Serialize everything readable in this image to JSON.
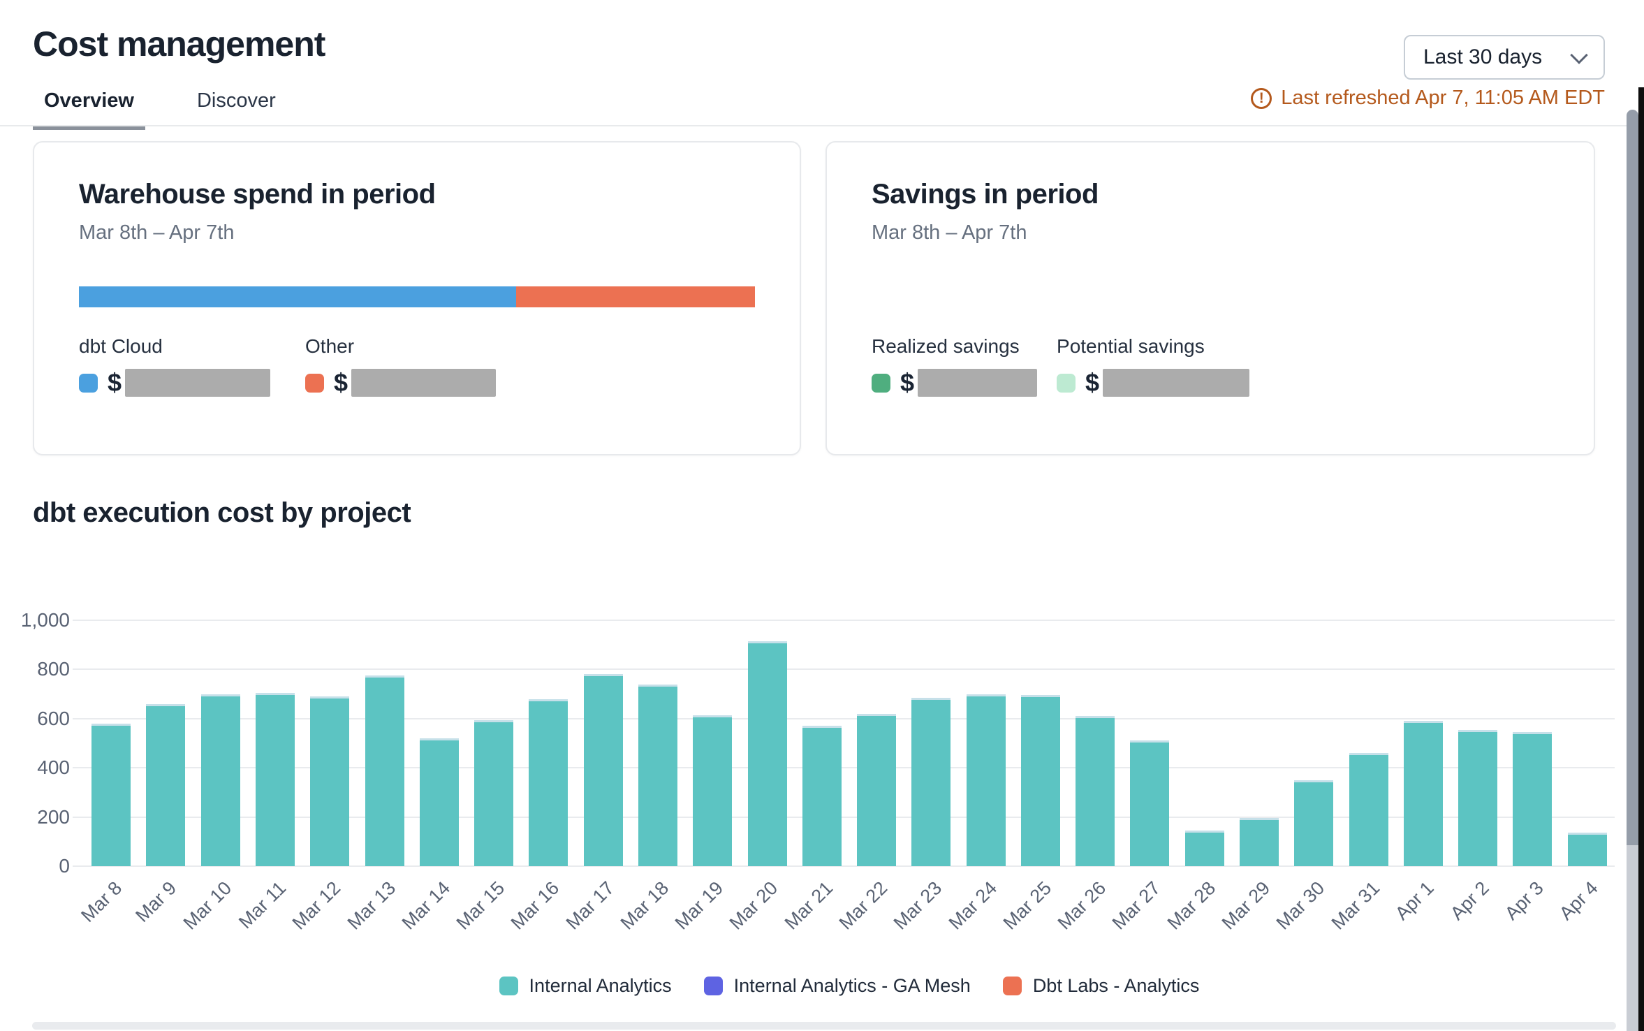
{
  "header": {
    "title": "Cost management",
    "tabs": [
      {
        "label": "Overview",
        "active": true
      },
      {
        "label": "Discover",
        "active": false
      }
    ],
    "date_range": {
      "value": "Last 30 days",
      "icon": "chevron-down-icon"
    },
    "last_refreshed": {
      "icon": "alert-circle-icon",
      "text": "Last refreshed Apr 7, 11:05 AM EDT",
      "color": "#B4591C"
    }
  },
  "cards": {
    "warehouse_spend": {
      "title": "Warehouse spend in period",
      "period": "Mar 8th – Apr 7th",
      "stacked_bar": {
        "segments": [
          {
            "name": "dbt Cloud",
            "color": "#4BA0DF",
            "percent": 64.7
          },
          {
            "name": "Other",
            "color": "#EC7152",
            "percent": 35.3
          }
        ]
      },
      "metrics": [
        {
          "label": "dbt Cloud",
          "swatch_color": "#4BA0DF",
          "currency": "$",
          "value_redacted": true
        },
        {
          "label": "Other",
          "swatch_color": "#EC7152",
          "currency": "$",
          "value_redacted": true
        }
      ]
    },
    "savings": {
      "title": "Savings in period",
      "period": "Mar 8th – Apr 7th",
      "metrics": [
        {
          "label": "Realized savings",
          "swatch_color": "#4FAE7F",
          "currency": "$",
          "value_redacted": true
        },
        {
          "label": "Potential savings",
          "swatch_color": "#BDEAD2",
          "currency": "$",
          "value_redacted": true
        }
      ]
    }
  },
  "chart_section": {
    "title": "dbt execution cost by project"
  },
  "chart_data": {
    "type": "bar",
    "title": "dbt execution cost by project",
    "categories": [
      "Mar 8",
      "Mar 9",
      "Mar 10",
      "Mar 11",
      "Mar 12",
      "Mar 13",
      "Mar 14",
      "Mar 15",
      "Mar 16",
      "Mar 17",
      "Mar 18",
      "Mar 19",
      "Mar 20",
      "Mar 21",
      "Mar 22",
      "Mar 23",
      "Mar 24",
      "Mar 25",
      "Mar 26",
      "Mar 27",
      "Mar 28",
      "Mar 29",
      "Mar 30",
      "Mar 31",
      "Apr 1",
      "Apr 2",
      "Apr 3",
      "Apr 4"
    ],
    "series": [
      {
        "name": "Internal Analytics",
        "color": "#5CC4C2",
        "values": [
          580,
          660,
          700,
          705,
          690,
          775,
          520,
          595,
          680,
          780,
          740,
          615,
          915,
          570,
          620,
          685,
          700,
          695,
          610,
          510,
          145,
          195,
          350,
          460,
          590,
          555,
          545,
          135
        ]
      }
    ],
    "legend": [
      {
        "label": "Internal Analytics",
        "color": "#5CC4C2"
      },
      {
        "label": "Internal Analytics - GA Mesh",
        "color": "#5E63E2"
      },
      {
        "label": "Dbt Labs - Analytics",
        "color": "#EC7152"
      }
    ],
    "legend_position": "bottom",
    "xlabel": "",
    "ylabel": "",
    "ylim": [
      0,
      1000
    ],
    "yticks": [
      0,
      200,
      400,
      600,
      800,
      1000
    ],
    "grid": true
  }
}
